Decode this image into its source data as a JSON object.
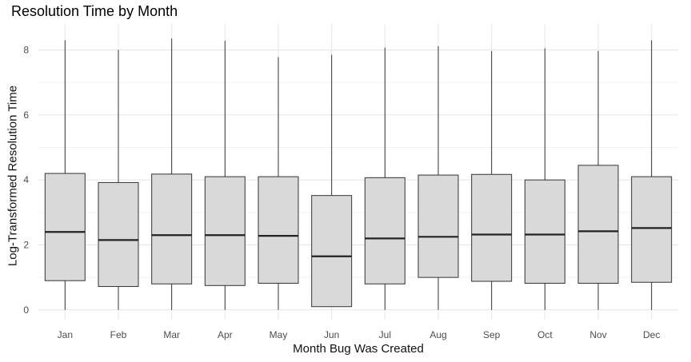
{
  "chart_data": {
    "type": "boxplot",
    "title": "Resolution Time by Month",
    "xlabel": "Month Bug Was Created",
    "ylabel": "Log-Transformed Resolution Time",
    "categories": [
      "Jan",
      "Feb",
      "Mar",
      "Apr",
      "May",
      "Jun",
      "Jul",
      "Aug",
      "Sep",
      "Oct",
      "Nov",
      "Dec"
    ],
    "ylim": [
      -0.3,
      8.8
    ],
    "yticks": [
      0,
      2,
      4,
      6,
      8
    ],
    "grid": true,
    "box_fill": "#d9d9d9",
    "box_stroke": "#333333",
    "boxes": [
      {
        "month": "Jan",
        "min": 0,
        "q1": 0.9,
        "median": 2.4,
        "q3": 4.2,
        "max": 8.3
      },
      {
        "month": "Feb",
        "min": 0,
        "q1": 0.72,
        "median": 2.15,
        "q3": 3.92,
        "max": 8.0
      },
      {
        "month": "Mar",
        "min": 0,
        "q1": 0.8,
        "median": 2.3,
        "q3": 4.18,
        "max": 8.35
      },
      {
        "month": "Apr",
        "min": 0,
        "q1": 0.75,
        "median": 2.3,
        "q3": 4.1,
        "max": 8.28
      },
      {
        "month": "May",
        "min": 0,
        "q1": 0.82,
        "median": 2.28,
        "q3": 4.1,
        "max": 7.78
      },
      {
        "month": "Jun",
        "min": 0.1,
        "q1": 0.1,
        "median": 1.65,
        "q3": 3.52,
        "max": 7.85
      },
      {
        "month": "Jul",
        "min": 0,
        "q1": 0.8,
        "median": 2.2,
        "q3": 4.07,
        "max": 8.07
      },
      {
        "month": "Aug",
        "min": 0,
        "q1": 1.0,
        "median": 2.25,
        "q3": 4.15,
        "max": 8.12
      },
      {
        "month": "Sep",
        "min": 0,
        "q1": 0.88,
        "median": 2.32,
        "q3": 4.17,
        "max": 7.97
      },
      {
        "month": "Oct",
        "min": 0,
        "q1": 0.82,
        "median": 2.32,
        "q3": 4.0,
        "max": 8.05
      },
      {
        "month": "Nov",
        "min": 0,
        "q1": 0.82,
        "median": 2.42,
        "q3": 4.45,
        "max": 7.97
      },
      {
        "month": "Dec",
        "min": 0,
        "q1": 0.85,
        "median": 2.52,
        "q3": 4.1,
        "max": 8.3
      }
    ]
  }
}
